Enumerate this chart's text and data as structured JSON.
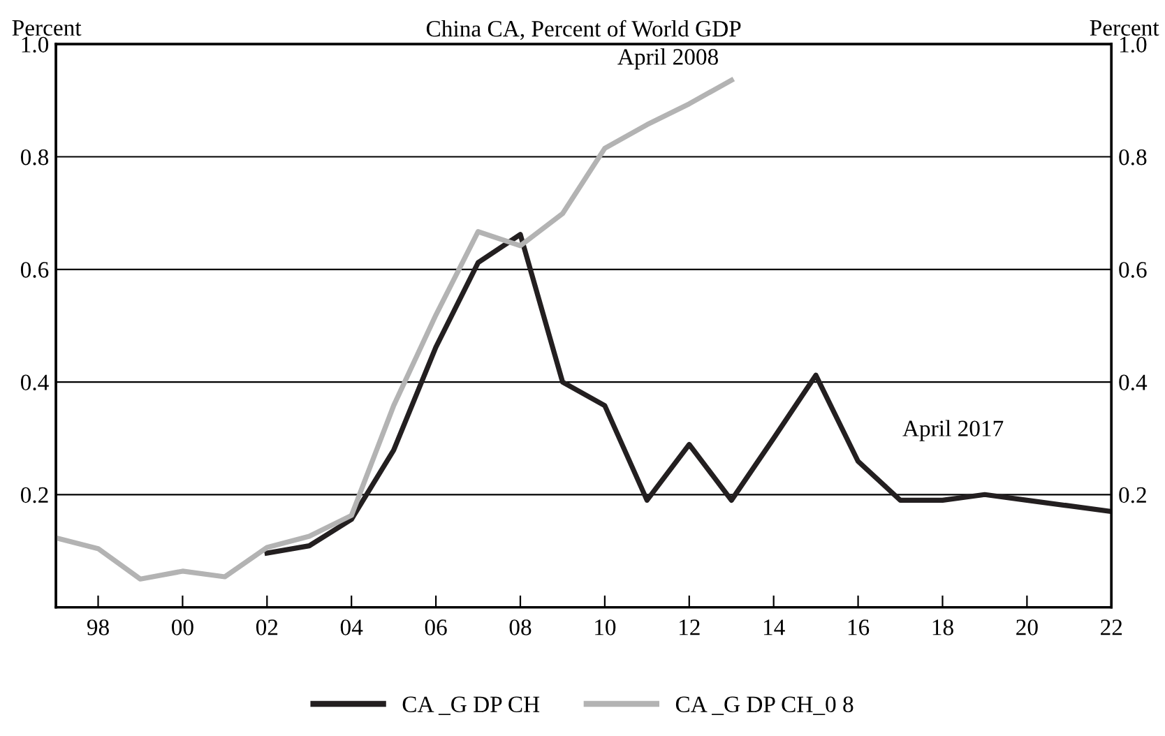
{
  "chart_data": {
    "type": "line",
    "title": "China CA, Percent of World GDP",
    "ylabel": "Percent",
    "y2label": "Percent",
    "x": [
      1997,
      1998,
      1999,
      2000,
      2001,
      2002,
      2003,
      2004,
      2005,
      2006,
      2007,
      2008,
      2009,
      2010,
      2011,
      2012,
      2013,
      2014,
      2015,
      2016,
      2017,
      2018,
      2019,
      2020,
      2021,
      2022
    ],
    "series": [
      {
        "name": "CA _G DP CH",
        "color": "#231f20",
        "values": [
          null,
          null,
          null,
          null,
          null,
          0.096,
          0.109,
          0.156,
          0.279,
          0.462,
          0.612,
          0.662,
          0.4,
          0.358,
          0.19,
          0.289,
          0.19,
          0.3,
          0.412,
          0.259,
          0.19,
          0.19,
          0.2,
          0.19,
          0.18,
          0.17
        ]
      },
      {
        "name": "CA _G DP CH_0 8",
        "color": "#b3b3b3",
        "values": [
          0.123,
          0.104,
          0.05,
          0.064,
          0.054,
          0.106,
          0.126,
          0.163,
          0.358,
          0.519,
          0.667,
          0.642,
          0.699,
          0.815,
          0.857,
          0.894,
          0.936,
          null,
          null,
          null,
          null,
          null,
          null,
          null,
          null,
          null
        ]
      }
    ],
    "annotations": [
      "April 2008",
      "April 2017"
    ],
    "xlim": [
      1997,
      2022
    ],
    "xticks": [
      {
        "value": 1998,
        "label": "98"
      },
      {
        "value": 2000,
        "label": "00"
      },
      {
        "value": 2002,
        "label": "02"
      },
      {
        "value": 2004,
        "label": "04"
      },
      {
        "value": 2006,
        "label": "06"
      },
      {
        "value": 2008,
        "label": "08"
      },
      {
        "value": 2010,
        "label": "10"
      },
      {
        "value": 2012,
        "label": "12"
      },
      {
        "value": 2014,
        "label": "14"
      },
      {
        "value": 2016,
        "label": "16"
      },
      {
        "value": 2018,
        "label": "18"
      },
      {
        "value": 2020,
        "label": "20"
      },
      {
        "value": 2022,
        "label": "22"
      }
    ],
    "ylim": [
      0,
      1
    ],
    "yticks": [
      0.2,
      0.4,
      0.6,
      0.8,
      {
        "value": 1,
        "label": "1.0"
      }
    ],
    "y2lim": [
      0,
      1
    ],
    "y2ticks": [
      0.2,
      0.4,
      0.6,
      0.8,
      {
        "value": 1,
        "label": "1.0"
      }
    ],
    "grid": "y",
    "legend": "bottom",
    "line_style": "solid"
  }
}
